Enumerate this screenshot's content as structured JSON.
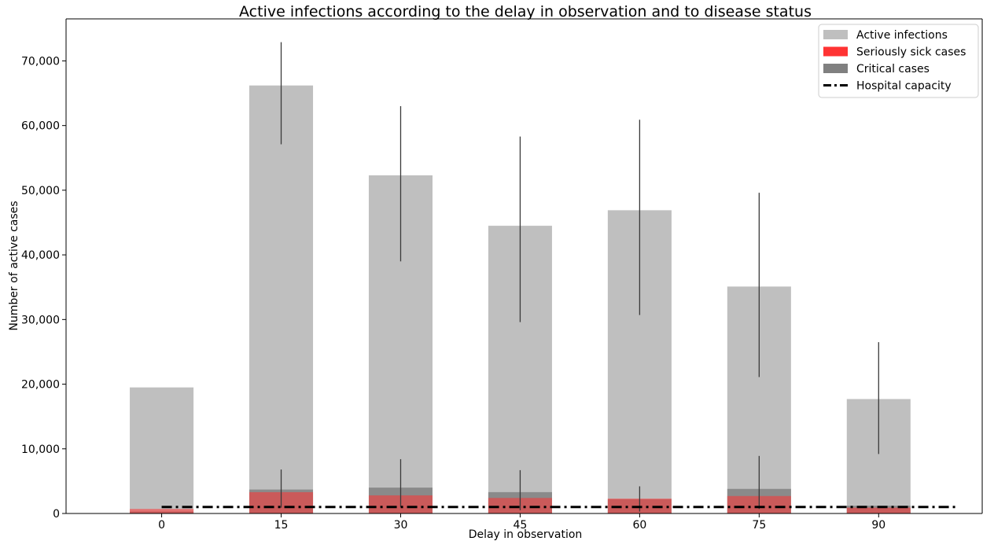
{
  "chart_data": {
    "type": "bar",
    "title": "Active infections according to the delay in observation and to disease status",
    "xlabel": "Delay in observation",
    "ylabel": "Number of active cases",
    "categories": [
      "0",
      "15",
      "30",
      "45",
      "60",
      "75",
      "90"
    ],
    "x": [
      0,
      15,
      30,
      45,
      60,
      75,
      90
    ],
    "xlim": [
      -12,
      103
    ],
    "ylim": [
      0,
      76500
    ],
    "yticks": [
      0,
      10000,
      20000,
      30000,
      40000,
      50000,
      60000,
      70000
    ],
    "ytick_labels": [
      "0",
      "10,000",
      "20,000",
      "30,000",
      "40,000",
      "50,000",
      "60,000",
      "70,000"
    ],
    "series": [
      {
        "name": "Active infections",
        "color": "#bfbfbf",
        "values": [
          19500,
          66200,
          52300,
          44500,
          46900,
          35100,
          17700
        ],
        "err_low": [
          null,
          57100,
          39000,
          29600,
          30700,
          21100,
          9200
        ],
        "err_high": [
          null,
          72900,
          63000,
          58300,
          60900,
          49600,
          26500
        ]
      },
      {
        "name": "Critical cases",
        "color": "#808080",
        "values": [
          300,
          3700,
          4000,
          3300,
          2200,
          3800,
          1200
        ],
        "err_low": [
          null,
          900,
          1000,
          500,
          300,
          700,
          null
        ],
        "err_high": [
          null,
          6800,
          8400,
          6700,
          4200,
          8900,
          2900
        ]
      },
      {
        "name": "Seriously sick cases",
        "color": "#ff3333",
        "values": [
          700,
          3300,
          2800,
          2400,
          2300,
          2700,
          900
        ],
        "err_low": [
          null,
          null,
          null,
          null,
          null,
          null,
          null
        ],
        "err_high": [
          null,
          null,
          null,
          null,
          null,
          null,
          null
        ]
      }
    ],
    "hospital_capacity": {
      "name": "Hospital capacity",
      "value": 1000,
      "x_range": [
        0,
        100
      ]
    },
    "legend": {
      "placement": "top-right",
      "entries": [
        {
          "label": "Active infections",
          "color": "#bfbfbf",
          "kind": "patch"
        },
        {
          "label": "Seriously sick cases",
          "color": "#ff3333",
          "kind": "patch"
        },
        {
          "label": "Critical cases",
          "color": "#808080",
          "kind": "patch"
        },
        {
          "label": "Hospital capacity",
          "color": "#000000",
          "kind": "dashdot-line"
        }
      ]
    },
    "grid": false
  }
}
